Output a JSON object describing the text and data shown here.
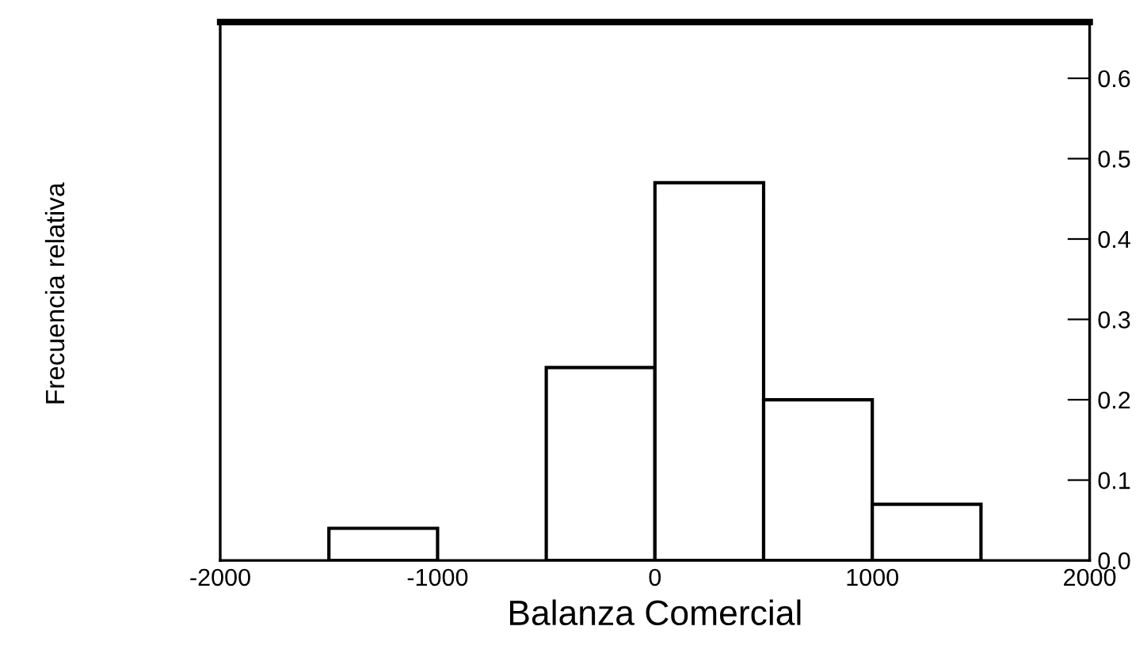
{
  "chart_data": {
    "type": "histogram",
    "xlabel": "Balanza Comercial",
    "ylabel": "Frecuencia relativa",
    "bins": [
      -1500,
      -1000,
      -500,
      0,
      500,
      1000,
      1500
    ],
    "values": [
      0.04,
      0,
      0.24,
      0.47,
      0.2,
      0.07
    ],
    "color": "#ffffff",
    "xlim": [
      -2000,
      2000
    ],
    "xticks": [
      -2000,
      -1000,
      0,
      1000,
      2000
    ],
    "ylim": [
      0,
      0.67
    ],
    "yticks": [
      {
        "value": 0,
        "label": "0.0"
      },
      0.1,
      0.2,
      0.3,
      0.4,
      0.5,
      0.6
    ],
    "grid": false
  }
}
